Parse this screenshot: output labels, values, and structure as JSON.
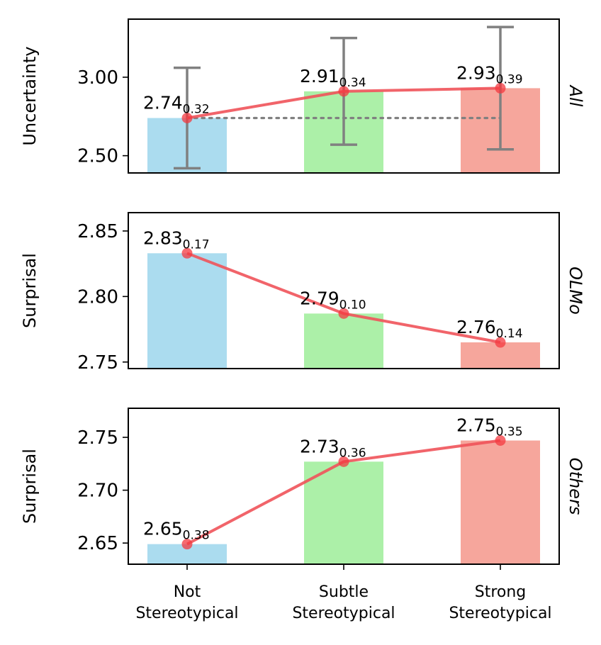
{
  "chart_data": [
    {
      "type": "bar",
      "panel": "All",
      "ylabel": "Uncertainty",
      "categories": [
        "Not Stereotypical",
        "Subtle Stereotypical",
        "Strong Stereotypical"
      ],
      "values": [
        2.74,
        2.91,
        2.93
      ],
      "stds": [
        0.32,
        0.34,
        0.39
      ],
      "value_labels": [
        "2.74",
        "2.91",
        "2.93"
      ],
      "std_labels": [
        "0.32",
        "0.34",
        "0.39"
      ],
      "error_bars": true,
      "baseline_dotted": true,
      "ylim": [
        2.39,
        3.37
      ],
      "yticks": [
        2.5,
        3.0
      ],
      "ytick_labels": [
        "2.50",
        "3.00"
      ]
    },
    {
      "type": "bar",
      "panel": "OLMo",
      "ylabel": "Surprisal",
      "categories": [
        "Not Stereotypical",
        "Subtle Stereotypical",
        "Strong Stereotypical"
      ],
      "values": [
        2.833,
        2.787,
        2.765
      ],
      "stds": [
        0.17,
        0.1,
        0.14
      ],
      "value_labels": [
        "2.83",
        "2.79",
        "2.76"
      ],
      "std_labels": [
        "0.17",
        "0.10",
        "0.14"
      ],
      "error_bars": false,
      "baseline_dotted": false,
      "ylim": [
        2.745,
        2.864
      ],
      "yticks": [
        2.75,
        2.8,
        2.85
      ],
      "ytick_labels": [
        "2.75",
        "2.80",
        "2.85"
      ]
    },
    {
      "type": "bar",
      "panel": "Others",
      "ylabel": "Surprisal",
      "categories": [
        "Not Stereotypical",
        "Subtle Stereotypical",
        "Strong Stereotypical"
      ],
      "values": [
        2.649,
        2.727,
        2.747
      ],
      "stds": [
        0.38,
        0.36,
        0.35
      ],
      "value_labels": [
        "2.65",
        "2.73",
        "2.75"
      ],
      "std_labels": [
        "0.38",
        "0.36",
        "0.35"
      ],
      "error_bars": false,
      "baseline_dotted": false,
      "ylim": [
        2.63,
        2.7775
      ],
      "yticks": [
        2.65,
        2.7,
        2.75
      ],
      "ytick_labels": [
        "2.65",
        "2.70",
        "2.75"
      ]
    }
  ],
  "x_labels": [
    [
      "Not",
      "Stereotypical"
    ],
    [
      "Subtle",
      "Stereotypical"
    ],
    [
      "Strong",
      "Stereotypical"
    ]
  ],
  "colors": {
    "bars": [
      "#abdcef",
      "#acf0a8",
      "#f6a69c"
    ],
    "line": "#f0535a",
    "marker": "#f43a40",
    "errorbar": "#808080",
    "baseline": "#808080"
  }
}
